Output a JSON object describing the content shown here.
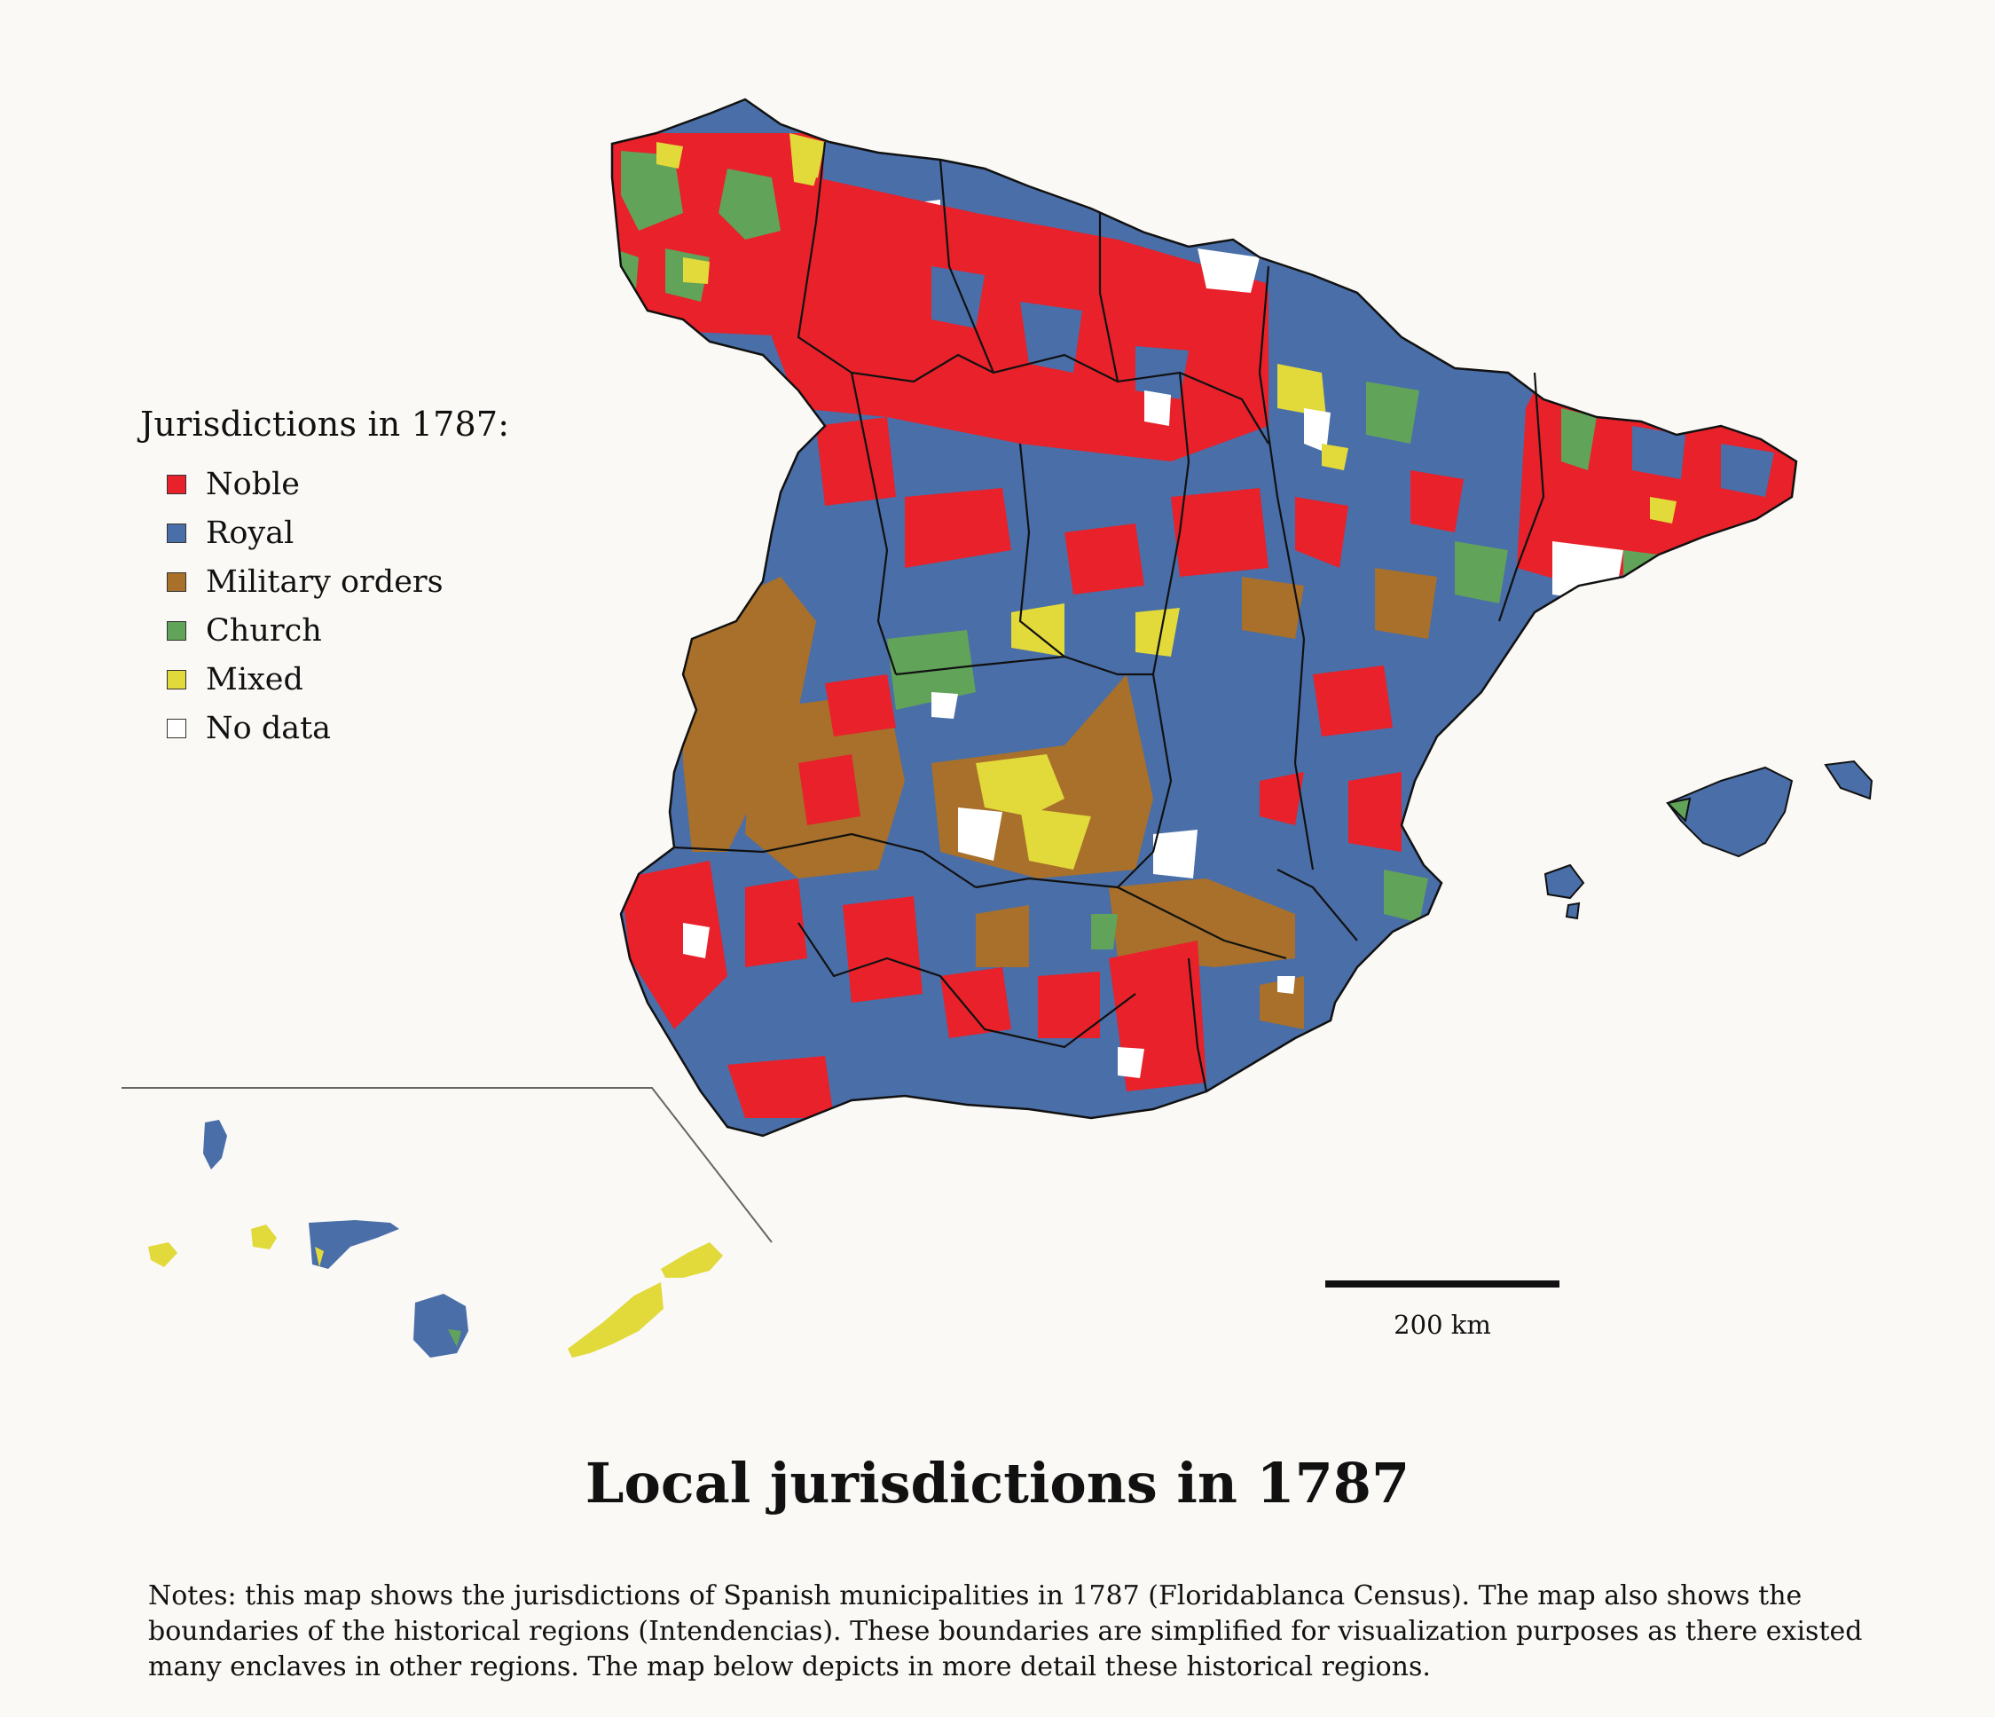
{
  "map": {
    "title": "Local jurisdictions in 1787",
    "legend": {
      "title": "Jurisdictions in 1787:",
      "items": [
        {
          "label": "Noble",
          "color": "#e8212a"
        },
        {
          "label": "Royal",
          "color": "#4a6ea8"
        },
        {
          "label": "Military orders",
          "color": "#a8702a"
        },
        {
          "label": "Church",
          "color": "#62a35a"
        },
        {
          "label": "Mixed",
          "color": "#e2d93a"
        },
        {
          "label": "No data",
          "color": "#ffffff"
        }
      ]
    },
    "scale_label": "200 km",
    "notes": "Notes: this map shows the jurisdictions of Spanish municipalities in 1787 (Floridablanca Census). The map also shows the boundaries of the historical regions (Intendencias). These boundaries are simplified for visualization purposes as there existed many enclaves in other regions. The map below depicts in more detail these historical regions."
  }
}
